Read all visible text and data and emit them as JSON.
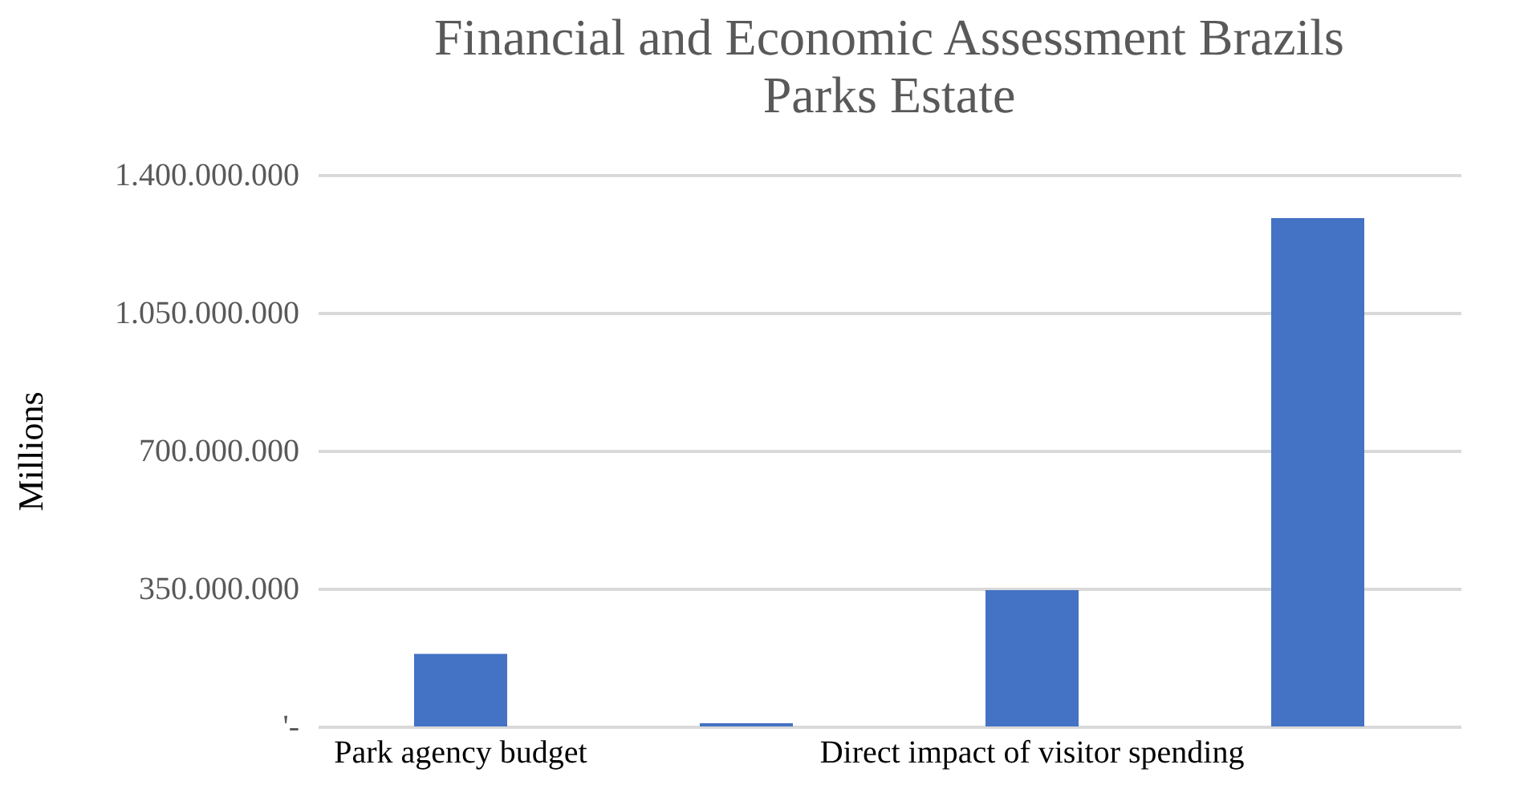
{
  "chart_data": {
    "type": "bar",
    "title": "Financial and Economic Assessment Brazils Parks Estate",
    "ylabel": "Millions",
    "categories": [
      "Park agency budget",
      null,
      "Direct impact of visitor spending",
      null
    ],
    "values": [
      184000000,
      8000000,
      346000000,
      1290000000
    ],
    "color": "#4472c4",
    "ylim": [
      0,
      1400000000
    ],
    "yticks": [
      {
        "value": 0,
        "label": "'-"
      },
      {
        "value": 350000000,
        "label": "350.000.000"
      },
      {
        "value": 700000000,
        "label": "700.000.000"
      },
      {
        "value": 1050000000,
        "label": "1.050.000.000"
      },
      {
        "value": 1400000000,
        "label": "1.400.000.000"
      }
    ],
    "grid": "y",
    "legend": false
  }
}
